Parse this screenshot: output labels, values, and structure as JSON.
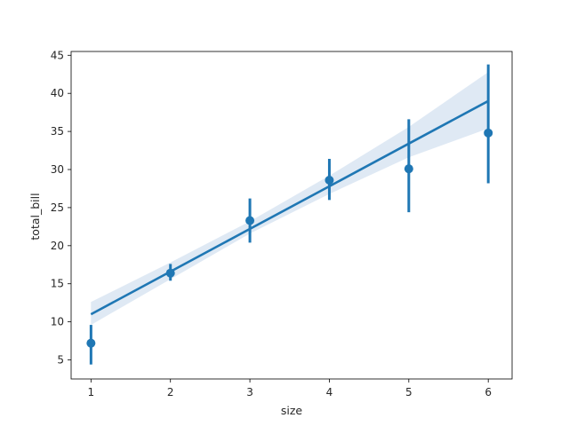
{
  "chart_data": {
    "type": "scatter",
    "title": "",
    "xlabel": "size",
    "ylabel": "total_bill",
    "xlim": [
      0.75,
      6.3
    ],
    "ylim": [
      2.5,
      45.5
    ],
    "xticks": [
      1,
      2,
      3,
      4,
      5,
      6
    ],
    "yticks": [
      5,
      10,
      15,
      20,
      25,
      30,
      35,
      40,
      45
    ],
    "grid": false,
    "legend": "none",
    "color": "#1f77b4",
    "band_color": "#dce7f3",
    "points": [
      {
        "x": 1,
        "y": 7.2,
        "err_low": 4.4,
        "err_high": 9.6
      },
      {
        "x": 2,
        "y": 16.4,
        "err_low": 15.4,
        "err_high": 17.6
      },
      {
        "x": 3,
        "y": 23.3,
        "err_low": 20.4,
        "err_high": 26.2
      },
      {
        "x": 4,
        "y": 28.6,
        "err_low": 26.0,
        "err_high": 31.4
      },
      {
        "x": 5,
        "y": 30.1,
        "err_low": 24.4,
        "err_high": 36.6
      },
      {
        "x": 6,
        "y": 34.8,
        "err_low": 28.2,
        "err_high": 43.8
      }
    ],
    "regression": {
      "x": [
        1,
        2,
        3,
        4,
        5,
        6
      ],
      "y": [
        11.0,
        16.6,
        22.2,
        27.8,
        33.4,
        39.0
      ],
      "ci_low": [
        9.6,
        15.6,
        21.6,
        26.8,
        31.6,
        35.4
      ],
      "ci_high": [
        12.6,
        17.8,
        23.2,
        29.2,
        35.6,
        42.8
      ]
    }
  }
}
